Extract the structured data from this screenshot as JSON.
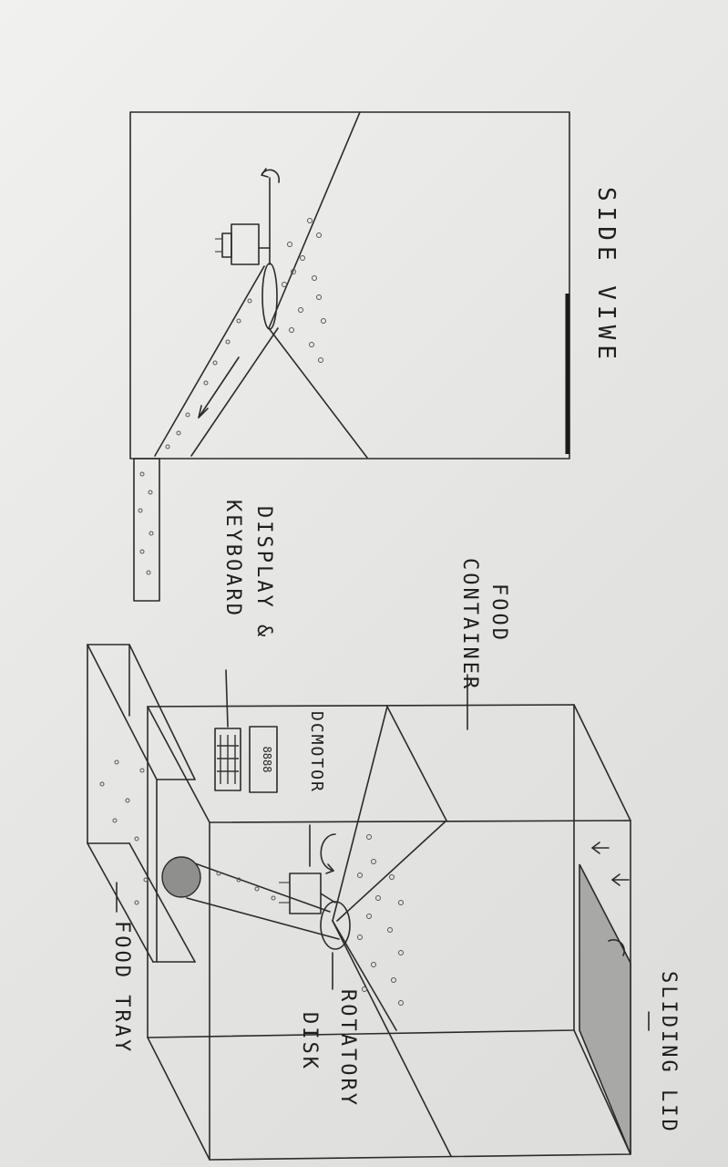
{
  "labels": {
    "side_view": "SIDE VIWE",
    "food_container": "FOOD\nCONTAINER",
    "food_container_line1": "FOOD",
    "food_container_line2": "CONTAINER",
    "display_keyboard_line1": "DISPLAY &",
    "display_keyboard_line2": "KEYBOARD",
    "dc_motor": "DCMOTOR",
    "sliding_lid": "SLIDING LID",
    "rotatory_disk_line1": "ROTATORY",
    "rotatory_disk_line2": "DISK",
    "food_tray": "FOOD TRAY",
    "display_digits": "8888"
  },
  "colors": {
    "ink": "#2b2b2b",
    "paper": "#ececea",
    "lid_shade": "#9a9a98"
  }
}
